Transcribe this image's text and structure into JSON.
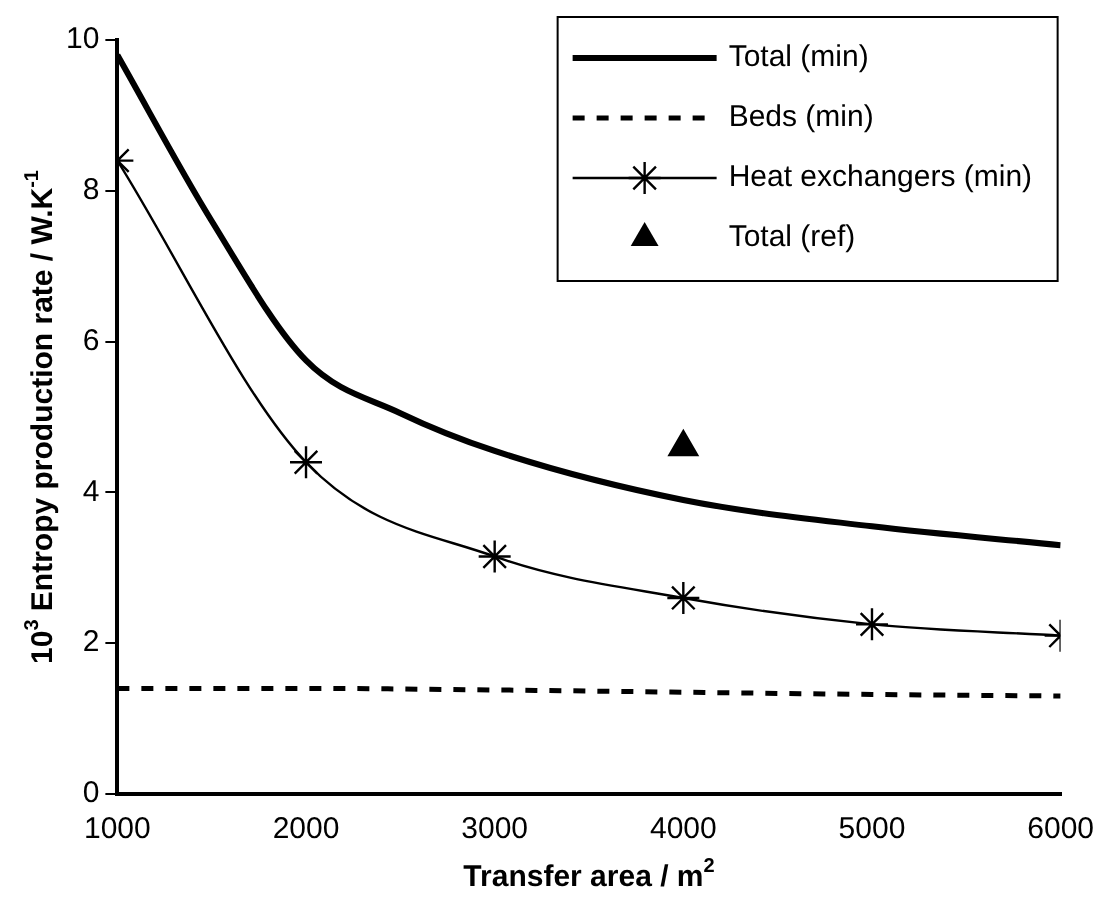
{
  "chart_data": {
    "type": "line",
    "xlabel": "Transfer area / m$^{2}$",
    "ylabel": "10$^{3}$ Entropy production rate / W.K$^{-1}$",
    "xlim": [
      1000,
      6000
    ],
    "xticks": [
      1000,
      2000,
      3000,
      4000,
      5000,
      6000
    ],
    "ylim": [
      0,
      10
    ],
    "yticks": [
      0,
      2,
      4,
      6,
      8,
      10
    ],
    "grid": false,
    "legend": "top right",
    "series": [
      {
        "name": "Total (min)",
        "color": "#000000",
        "marker": "none",
        "line_style": "solid",
        "x": [
          1000,
          1500,
          2000,
          2500,
          3000,
          4000,
          5000,
          6000
        ],
        "values": [
          9.8,
          7.6,
          5.75,
          5.05,
          4.55,
          3.9,
          3.55,
          3.3
        ]
      },
      {
        "name": "Beds (min)",
        "color": "#000000",
        "marker": "none",
        "line_style": "dashed",
        "x": [
          1000,
          2000,
          3000,
          4000,
          5000,
          6000
        ],
        "values": [
          1.4,
          1.4,
          1.38,
          1.35,
          1.32,
          1.3
        ]
      },
      {
        "name": "Heat exchangers (min)",
        "color": "#000000",
        "marker": "cross",
        "line_style": "solid",
        "x": [
          1000,
          2000,
          3000,
          4000,
          5000,
          6000
        ],
        "values": [
          8.4,
          4.4,
          3.15,
          2.6,
          2.25,
          2.1
        ]
      },
      {
        "name": "Total (ref)",
        "color": "#000000",
        "type": "scatter",
        "marker": "triangle",
        "x": [
          4000
        ],
        "values": [
          4.6
        ]
      }
    ]
  }
}
